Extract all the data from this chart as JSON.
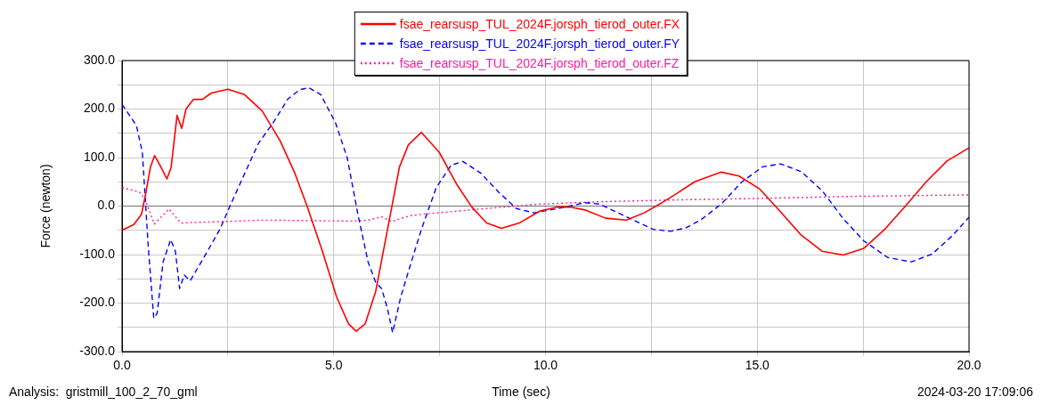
{
  "chart_data": {
    "type": "line",
    "xlabel": "Time (sec)",
    "ylabel": "Force (newton)",
    "annotations": [
      "Analysis:  gristmill_100_2_70_gml",
      "2024-03-20 17:09:06"
    ],
    "xlim": [
      0,
      20
    ],
    "ylim": [
      -300,
      300
    ],
    "xticks": [
      {
        "value": 0,
        "label": "0.0"
      },
      {
        "value": 2.5,
        "label": null
      },
      {
        "value": 5,
        "label": "5.0"
      },
      {
        "value": 7.5,
        "label": null
      },
      {
        "value": 10,
        "label": "10.0"
      },
      {
        "value": 12.5,
        "label": null
      },
      {
        "value": 15,
        "label": "15.0"
      },
      {
        "value": 17.5,
        "label": null
      },
      {
        "value": 20,
        "label": "20.0"
      }
    ],
    "yticks": [
      {
        "value": -300,
        "label": "-300.0"
      },
      {
        "value": -250,
        "label": null
      },
      {
        "value": -200,
        "label": "-200.0"
      },
      {
        "value": -150,
        "label": null
      },
      {
        "value": -100,
        "label": "-100.0"
      },
      {
        "value": -50,
        "label": null
      },
      {
        "value": 0,
        "label": "0.0"
      },
      {
        "value": 50,
        "label": null
      },
      {
        "value": 100,
        "label": "100.0"
      },
      {
        "value": 150,
        "label": null
      },
      {
        "value": 200,
        "label": "200.0"
      },
      {
        "value": 250,
        "label": null
      },
      {
        "value": 300,
        "label": "300.0"
      }
    ],
    "grid": true,
    "legend": "top",
    "marker": "none",
    "ref_lines": [
      {
        "axis": "y",
        "value": 0,
        "color": "#707070"
      }
    ],
    "series": [
      {
        "name": "fsae_rearsusp_TUL_2024F.jorsph_tierod_outer.FX",
        "color": "#ff0000",
        "line_style": "solid",
        "x": [
          0,
          0.28,
          0.46,
          0.56,
          0.67,
          0.77,
          0.88,
          1.06,
          1.16,
          1.3,
          1.41,
          1.51,
          1.69,
          1.9,
          2.11,
          2.5,
          2.89,
          3.31,
          3.73,
          4.08,
          4.37,
          4.72,
          5.07,
          5.35,
          5.53,
          5.74,
          5.99,
          6.27,
          6.55,
          6.76,
          7.07,
          7.49,
          7.91,
          8.26,
          8.61,
          8.96,
          9.38,
          9.87,
          10.3,
          10.58,
          10.93,
          11.42,
          11.91,
          12.33,
          12.75,
          13.1,
          13.52,
          14.15,
          14.57,
          15.06,
          15.48,
          16.04,
          16.53,
          17.03,
          17.52,
          18.01,
          18.5,
          18.99,
          19.48,
          20
        ],
        "values": [
          -50,
          -38,
          -17,
          26,
          80,
          104,
          87,
          56,
          80,
          187,
          160,
          200,
          220,
          220,
          233,
          241,
          230,
          196,
          135,
          68,
          0,
          -90,
          -188,
          -243,
          -258,
          -243,
          -176,
          -48,
          80,
          126,
          152,
          111,
          44,
          -2,
          -35,
          -46,
          -35,
          -10,
          -2,
          -2,
          -8,
          -25,
          -29,
          -14,
          7,
          26,
          50,
          70,
          62,
          35,
          -5,
          -60,
          -93,
          -101,
          -87,
          -48,
          0,
          50,
          93,
          120
        ]
      },
      {
        "name": "fsae_rearsusp_TUL_2024F.jorsph_tierod_outer.FY",
        "color": "#0000ff",
        "line_style": "dashed",
        "x": [
          0,
          0.34,
          0.48,
          0.62,
          0.75,
          0.83,
          0.97,
          1.15,
          1.26,
          1.36,
          1.47,
          1.61,
          1.96,
          2.31,
          2.55,
          2.87,
          3.22,
          3.57,
          3.92,
          4.2,
          4.41,
          4.69,
          5.04,
          5.32,
          5.57,
          5.81,
          5.99,
          6.13,
          6.27,
          6.39,
          6.58,
          6.79,
          7.07,
          7.42,
          7.77,
          8.05,
          8.47,
          8.89,
          9.31,
          9.73,
          10.3,
          10.93,
          11.28,
          11.91,
          12.54,
          12.96,
          13.31,
          13.66,
          14.15,
          14.64,
          15.13,
          15.55,
          16.04,
          16.53,
          17.03,
          17.52,
          18.08,
          18.64,
          19.13,
          19.62,
          20
        ],
        "values": [
          210,
          166,
          111,
          -84,
          -231,
          -221,
          -115,
          -69,
          -93,
          -170,
          -142,
          -154,
          -102,
          -48,
          0,
          62,
          129,
          172,
          221,
          240,
          244,
          230,
          172,
          99,
          -17,
          -115,
          -157,
          -170,
          -212,
          -261,
          -188,
          -127,
          -48,
          38,
          84,
          92,
          68,
          29,
          -5,
          -14,
          -5,
          7,
          4,
          -22,
          -48,
          -52,
          -45,
          -29,
          4,
          50,
          81,
          87,
          71,
          32,
          -26,
          -72,
          -106,
          -115,
          -99,
          -60,
          -23
        ]
      },
      {
        "name": "fsae_rearsusp_TUL_2024F.jorsph_tierod_outer.FZ",
        "color": "#ff1aa0",
        "line_style": "dotted",
        "x": [
          0,
          0.41,
          0.55,
          0.76,
          1.11,
          1.39,
          1.67,
          3.35,
          5.46,
          5.81,
          6.13,
          6.37,
          6.79,
          7.07,
          8.47,
          9.87,
          11.28,
          13.31,
          15.2,
          17.3,
          20
        ],
        "values": [
          38,
          29,
          13,
          -37,
          -6,
          -35,
          -34,
          -29,
          -31,
          -29,
          -22,
          -32,
          -20,
          -17,
          -6,
          4,
          9,
          13,
          16,
          20,
          23
        ]
      }
    ]
  }
}
